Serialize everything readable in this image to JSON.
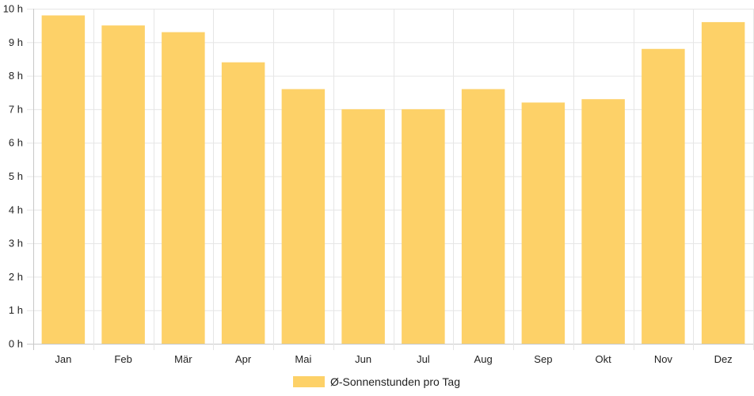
{
  "chart_data": {
    "type": "bar",
    "categories": [
      "Jan",
      "Feb",
      "Mär",
      "Apr",
      "Mai",
      "Jun",
      "Jul",
      "Aug",
      "Sep",
      "Okt",
      "Nov",
      "Dez"
    ],
    "series": [
      {
        "name": "Ø-Sonnenstunden pro Tag",
        "values": [
          9.8,
          9.5,
          9.3,
          8.4,
          7.6,
          7.0,
          7.0,
          7.6,
          7.2,
          7.3,
          8.8,
          9.6
        ]
      }
    ],
    "y_ticks": [
      "0 h",
      "1 h",
      "2 h",
      "3 h",
      "4 h",
      "5 h",
      "6 h",
      "7 h",
      "8 h",
      "9 h",
      "10 h"
    ],
    "ylim": [
      0,
      10
    ],
    "grid": true,
    "legend_position": "bottom",
    "bar_color": "#FDD168",
    "grid_color": "#e6e6e6",
    "axis_color": "#c8c8c8"
  }
}
